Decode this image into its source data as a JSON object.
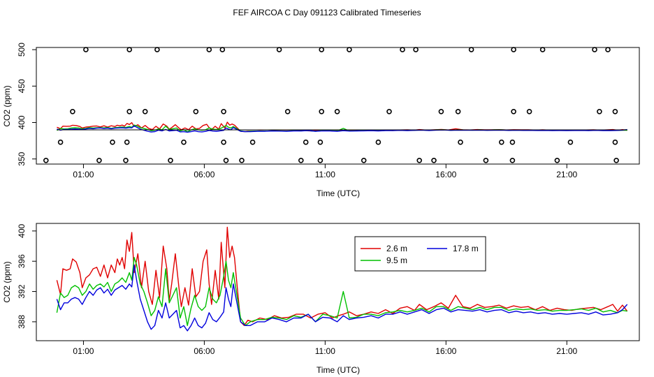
{
  "title": "FEF AIRCOA C  Day 091123  Calibrated Timeseries",
  "colors": {
    "s26": "#e00000",
    "s95": "#00c000",
    "s178": "#0000dd",
    "ref": "#000000"
  },
  "chart_data": [
    {
      "type": "line",
      "name": "top-panel",
      "xlabel": "Time (UTC)",
      "ylabel": "CO2 (ppm)",
      "xlim": [
        -0.95,
        24.0
      ],
      "ylim": [
        343,
        503
      ],
      "xticks": [
        1,
        6,
        11,
        16,
        21
      ],
      "xtick_labels": [
        "01:00",
        "06:00",
        "11:00",
        "16:00",
        "21:00"
      ],
      "yticks": [
        350,
        400,
        450,
        500
      ],
      "ytick_labels": [
        "350",
        "400",
        "450",
        "500"
      ],
      "calibration_points": {
        "t500": [
          1.1,
          2.9,
          4.05,
          6.2,
          6.75,
          9.1,
          10.85,
          12.0,
          14.2,
          14.75,
          17.05,
          18.8,
          20.0,
          22.15,
          22.7
        ],
        "t415": [
          0.55,
          2.9,
          3.55,
          5.65,
          6.8,
          9.45,
          10.85,
          11.5,
          13.65,
          15.8,
          16.5,
          18.8,
          19.45,
          22.35,
          23.0
        ],
        "t373": [
          0.05,
          2.2,
          2.8,
          5.15,
          6.8,
          8.0,
          10.2,
          10.8,
          13.2,
          16.6,
          18.3,
          18.75,
          21.15,
          23.0
        ],
        "t348": [
          -0.55,
          1.65,
          2.75,
          4.6,
          6.9,
          7.55,
          10.0,
          10.8,
          12.6,
          14.9,
          15.5,
          17.65,
          18.75,
          20.6,
          23.05
        ]
      },
      "series": [
        {
          "name": "2.6 m",
          "note": "same data as bottom panel"
        },
        {
          "name": "9.5 m",
          "note": "same data as bottom panel"
        },
        {
          "name": "17.8 m",
          "note": "same data as bottom panel"
        }
      ]
    },
    {
      "type": "line",
      "name": "bottom-panel",
      "xlabel": "Time (UTC)",
      "ylabel": "CO2 (ppm)",
      "xlim": [
        -0.95,
        24.0
      ],
      "ylim": [
        385.5,
        401.0
      ],
      "xticks": [
        1,
        6,
        11,
        16,
        21
      ],
      "xtick_labels": [
        "01:00",
        "06:00",
        "11:00",
        "16:00",
        "21:00"
      ],
      "yticks": [
        388,
        392,
        396,
        400
      ],
      "ytick_labels": [
        "388",
        "392",
        "396",
        "400"
      ],
      "legend": {
        "position": "top-center",
        "entries": [
          "2.6 m",
          "9.5 m",
          "17.8 m"
        ]
      },
      "series": [
        {
          "name": "2.6 m",
          "x": [
            -0.1,
            0.05,
            0.15,
            0.3,
            0.45,
            0.55,
            0.7,
            0.85,
            0.95,
            1.1,
            1.25,
            1.4,
            1.55,
            1.7,
            1.85,
            2.0,
            2.15,
            2.3,
            2.4,
            2.5,
            2.6,
            2.7,
            2.8,
            2.9,
            3.0,
            3.1,
            3.25,
            3.4,
            3.55,
            3.7,
            3.85,
            4.0,
            4.15,
            4.3,
            4.45,
            4.55,
            4.65,
            4.8,
            4.95,
            5.05,
            5.2,
            5.35,
            5.5,
            5.65,
            5.8,
            5.95,
            6.1,
            6.2,
            6.3,
            6.45,
            6.6,
            6.7,
            6.85,
            6.95,
            7.05,
            7.15,
            7.25,
            7.35,
            7.5,
            7.65,
            7.8,
            8.0,
            8.3,
            8.6,
            8.9,
            9.2,
            9.5,
            9.8,
            10.1,
            10.4,
            10.7,
            11.0,
            11.3,
            11.55,
            11.75,
            12.0,
            12.3,
            12.6,
            12.9,
            13.2,
            13.5,
            13.8,
            14.1,
            14.4,
            14.7,
            14.9,
            15.2,
            15.5,
            15.8,
            16.1,
            16.4,
            16.7,
            17.0,
            17.3,
            17.6,
            17.9,
            18.2,
            18.5,
            18.8,
            19.1,
            19.4,
            19.7,
            20.0,
            20.3,
            20.6,
            20.9,
            21.2,
            21.5,
            21.8,
            22.1,
            22.4,
            22.7,
            22.9,
            23.1,
            23.3,
            23.5
          ],
          "values": [
            393.5,
            391.6,
            395.0,
            394.8,
            395.0,
            396.3,
            395.9,
            394.5,
            392.5,
            393.8,
            394.2,
            395.0,
            395.2,
            394.0,
            395.5,
            393.8,
            395.5,
            394.5,
            396.3,
            395.5,
            396.5,
            395.0,
            398.8,
            397.3,
            399.8,
            394.5,
            397.0,
            392.5,
            396.0,
            392.0,
            390.3,
            394.8,
            391.2,
            398.0,
            395.0,
            390.8,
            393.0,
            397.0,
            392.5,
            390.0,
            392.5,
            390.2,
            395.0,
            391.3,
            392.0,
            396.0,
            397.5,
            393.0,
            390.3,
            394.8,
            391.0,
            398.5,
            392.5,
            400.5,
            396.5,
            398.0,
            396.5,
            393.0,
            388.0,
            387.5,
            388.2,
            388.0,
            388.5,
            388.3,
            388.8,
            388.5,
            388.6,
            389.0,
            389.0,
            388.5,
            389.0,
            389.2,
            388.5,
            388.8,
            389.0,
            389.3,
            388.8,
            389.0,
            389.3,
            389.1,
            389.6,
            389.1,
            389.8,
            390.0,
            389.5,
            390.3,
            389.6,
            390.0,
            390.5,
            389.8,
            391.5,
            390.0,
            389.8,
            390.3,
            389.9,
            390.0,
            390.2,
            389.8,
            390.1,
            389.9,
            390.0,
            389.6,
            390.0,
            389.5,
            389.8,
            389.6,
            389.5,
            389.7,
            389.8,
            389.9,
            389.6,
            390.0,
            390.3,
            389.4,
            390.2,
            389.4
          ]
        },
        {
          "name": "9.5 m",
          "x": [
            -0.1,
            0.05,
            0.2,
            0.35,
            0.5,
            0.65,
            0.8,
            0.95,
            1.1,
            1.25,
            1.4,
            1.55,
            1.7,
            1.85,
            2.0,
            2.15,
            2.3,
            2.45,
            2.6,
            2.75,
            2.9,
            3.0,
            3.1,
            3.2,
            3.35,
            3.5,
            3.65,
            3.8,
            3.95,
            4.1,
            4.25,
            4.4,
            4.55,
            4.7,
            4.85,
            5.0,
            5.15,
            5.3,
            5.45,
            5.6,
            5.75,
            5.9,
            6.05,
            6.2,
            6.35,
            6.5,
            6.65,
            6.8,
            6.9,
            7.0,
            7.1,
            7.2,
            7.35,
            7.5,
            7.7,
            7.9,
            8.2,
            8.5,
            8.8,
            9.1,
            9.4,
            9.7,
            10.0,
            10.3,
            10.6,
            10.9,
            11.2,
            11.5,
            11.75,
            12.0,
            12.3,
            12.6,
            12.9,
            13.2,
            13.5,
            13.8,
            14.1,
            14.4,
            14.7,
            15.0,
            15.3,
            15.6,
            15.9,
            16.2,
            16.5,
            16.8,
            17.1,
            17.4,
            17.7,
            18.0,
            18.3,
            18.6,
            18.9,
            19.2,
            19.5,
            19.8,
            20.1,
            20.4,
            20.7,
            21.0,
            21.3,
            21.6,
            21.9,
            22.2,
            22.5,
            22.8,
            23.1,
            23.3,
            23.5
          ],
          "values": [
            389.2,
            391.8,
            391.2,
            391.5,
            392.5,
            392.8,
            392.5,
            391.5,
            392.0,
            393.0,
            392.3,
            392.8,
            393.0,
            392.6,
            393.2,
            392.0,
            393.0,
            393.3,
            393.8,
            393.2,
            394.5,
            393.5,
            396.5,
            395.5,
            393.0,
            392.0,
            390.5,
            388.8,
            389.5,
            391.3,
            390.0,
            395.0,
            390.5,
            391.5,
            392.5,
            388.5,
            390.0,
            387.5,
            389.8,
            391.5,
            390.0,
            389.5,
            390.0,
            392.5,
            391.0,
            390.5,
            391.5,
            394.0,
            396.0,
            393.5,
            392.5,
            394.5,
            391.5,
            388.5,
            387.5,
            388.0,
            388.3,
            388.3,
            388.6,
            388.5,
            388.3,
            388.8,
            388.6,
            389.0,
            388.0,
            389.0,
            388.8,
            388.5,
            392.0,
            388.5,
            388.6,
            389.0,
            389.0,
            388.8,
            389.2,
            389.3,
            389.5,
            389.3,
            389.5,
            389.8,
            389.3,
            390.0,
            390.0,
            389.5,
            390.0,
            389.8,
            389.6,
            389.9,
            389.6,
            389.9,
            389.9,
            389.5,
            389.7,
            389.6,
            389.7,
            389.5,
            389.6,
            389.4,
            389.5,
            389.5,
            389.6,
            389.7,
            389.5,
            389.8,
            389.3,
            389.5,
            389.2,
            389.5,
            389.4
          ]
        },
        {
          "name": "17.8 m",
          "x": [
            -0.1,
            0.05,
            0.2,
            0.35,
            0.5,
            0.65,
            0.8,
            0.95,
            1.1,
            1.25,
            1.4,
            1.55,
            1.7,
            1.85,
            2.0,
            2.15,
            2.3,
            2.45,
            2.6,
            2.75,
            2.9,
            3.0,
            3.1,
            3.2,
            3.35,
            3.5,
            3.65,
            3.8,
            3.95,
            4.1,
            4.25,
            4.4,
            4.55,
            4.7,
            4.85,
            5.0,
            5.15,
            5.3,
            5.45,
            5.6,
            5.75,
            5.9,
            6.05,
            6.2,
            6.35,
            6.5,
            6.65,
            6.8,
            6.9,
            7.0,
            7.1,
            7.2,
            7.35,
            7.5,
            7.7,
            7.9,
            8.2,
            8.5,
            8.8,
            9.1,
            9.4,
            9.7,
            10.0,
            10.3,
            10.6,
            10.9,
            11.2,
            11.5,
            11.75,
            12.0,
            12.3,
            12.6,
            12.9,
            13.2,
            13.5,
            13.8,
            14.1,
            14.4,
            14.7,
            15.0,
            15.3,
            15.6,
            15.9,
            16.2,
            16.5,
            16.8,
            17.1,
            17.4,
            17.7,
            18.0,
            18.3,
            18.6,
            18.9,
            19.2,
            19.5,
            19.8,
            20.1,
            20.4,
            20.7,
            21.0,
            21.3,
            21.6,
            21.9,
            22.2,
            22.5,
            22.8,
            23.1,
            23.3,
            23.5
          ],
          "values": [
            391.0,
            389.6,
            390.5,
            390.5,
            391.0,
            391.2,
            391.0,
            390.3,
            391.2,
            392.0,
            391.5,
            392.2,
            392.5,
            391.8,
            392.3,
            391.5,
            392.2,
            392.5,
            392.8,
            392.3,
            393.0,
            392.6,
            395.5,
            393.5,
            391.0,
            389.5,
            388.0,
            387.0,
            387.5,
            389.5,
            388.5,
            390.5,
            388.5,
            389.0,
            389.5,
            387.2,
            387.5,
            386.8,
            387.5,
            388.5,
            387.5,
            387.2,
            387.8,
            389.2,
            388.3,
            388.0,
            388.6,
            389.3,
            392.5,
            391.0,
            390.0,
            393.0,
            390.5,
            388.0,
            387.5,
            387.5,
            388.0,
            388.0,
            388.5,
            388.3,
            388.0,
            388.5,
            388.5,
            389.0,
            388.0,
            388.6,
            388.5,
            388.0,
            388.8,
            388.3,
            388.5,
            388.6,
            388.8,
            388.5,
            389.0,
            389.0,
            389.3,
            389.0,
            389.3,
            389.6,
            389.1,
            389.6,
            389.8,
            389.3,
            389.6,
            389.5,
            389.4,
            389.6,
            389.3,
            389.5,
            389.6,
            389.2,
            389.4,
            389.2,
            389.3,
            389.1,
            389.2,
            389.0,
            389.1,
            389.0,
            389.1,
            389.2,
            389.0,
            389.3,
            388.9,
            389.0,
            389.2,
            389.6,
            390.3
          ]
        }
      ]
    }
  ]
}
